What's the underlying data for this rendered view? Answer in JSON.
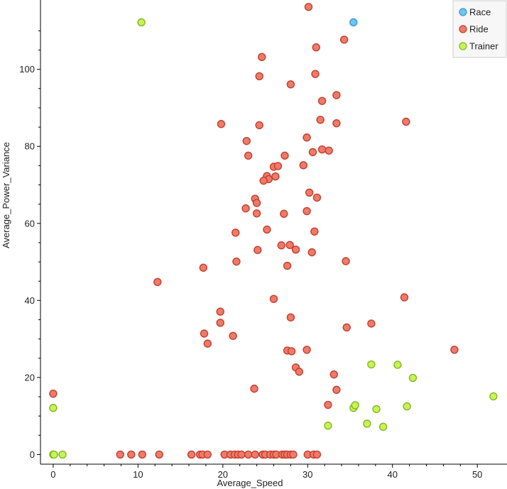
{
  "chart_data": {
    "type": "scatter",
    "title": "",
    "xlabel": "Average_Speed",
    "ylabel": "Average_Power_Variance",
    "xlim": [
      -1.5,
      53.5
    ],
    "ylim": [
      -2.5,
      118
    ],
    "xticks": [
      0,
      10,
      20,
      30,
      40,
      50
    ],
    "yticks": [
      0,
      20,
      40,
      60,
      80,
      100
    ],
    "legend_position": "top-right",
    "series": [
      {
        "name": "Race",
        "color": "#6ec6f0",
        "stroke": "#3d97c7",
        "points": [
          [
            35.4,
            112.2
          ]
        ]
      },
      {
        "name": "Ride",
        "color": "#f07a6a",
        "stroke": "#c2402e",
        "points": [
          [
            30.1,
            116.2
          ],
          [
            24.6,
            103.2
          ],
          [
            31.0,
            105.7
          ],
          [
            34.3,
            107.7
          ],
          [
            24.3,
            98.2
          ],
          [
            30.9,
            98.8
          ],
          [
            28.0,
            96.1
          ],
          [
            33.4,
            93.3
          ],
          [
            31.7,
            91.8
          ],
          [
            19.8,
            85.8
          ],
          [
            24.3,
            85.5
          ],
          [
            31.5,
            86.9
          ],
          [
            33.4,
            86.0
          ],
          [
            41.6,
            86.4
          ],
          [
            29.9,
            82.3
          ],
          [
            22.8,
            81.4
          ],
          [
            30.6,
            78.5
          ],
          [
            31.7,
            79.2
          ],
          [
            32.5,
            78.9
          ],
          [
            23.0,
            77.6
          ],
          [
            27.3,
            77.6
          ],
          [
            29.5,
            75.1
          ],
          [
            26.0,
            74.7
          ],
          [
            26.5,
            74.9
          ],
          [
            25.2,
            72.3
          ],
          [
            25.4,
            71.5
          ],
          [
            26.2,
            72.2
          ],
          [
            24.8,
            71.1
          ],
          [
            23.8,
            66.4
          ],
          [
            24.0,
            65.3
          ],
          [
            30.2,
            68.0
          ],
          [
            31.1,
            66.7
          ],
          [
            22.7,
            63.9
          ],
          [
            24.0,
            62.6
          ],
          [
            27.2,
            62.5
          ],
          [
            29.9,
            63.2
          ],
          [
            25.2,
            58.4
          ],
          [
            21.5,
            57.6
          ],
          [
            30.8,
            57.9
          ],
          [
            24.1,
            53.1
          ],
          [
            26.9,
            54.3
          ],
          [
            27.9,
            54.4
          ],
          [
            28.6,
            53.2
          ],
          [
            30.5,
            52.5
          ],
          [
            21.6,
            50.1
          ],
          [
            17.7,
            48.5
          ],
          [
            27.6,
            49.0
          ],
          [
            34.5,
            50.2
          ],
          [
            12.3,
            44.8
          ],
          [
            26.0,
            40.4
          ],
          [
            41.4,
            40.8
          ],
          [
            19.7,
            37.1
          ],
          [
            28.0,
            35.6
          ],
          [
            19.7,
            34.2
          ],
          [
            37.5,
            34.0
          ],
          [
            34.6,
            33.0
          ],
          [
            17.8,
            31.4
          ],
          [
            21.2,
            30.8
          ],
          [
            18.2,
            28.8
          ],
          [
            27.6,
            27.0
          ],
          [
            28.1,
            26.8
          ],
          [
            29.9,
            27.2
          ],
          [
            47.3,
            27.2
          ],
          [
            28.6,
            22.6
          ],
          [
            29.0,
            21.5
          ],
          [
            33.1,
            20.8
          ],
          [
            23.7,
            17.1
          ],
          [
            33.4,
            16.8
          ],
          [
            0.0,
            15.8
          ],
          [
            32.4,
            12.9
          ],
          [
            7.9,
            0
          ],
          [
            9.2,
            0
          ],
          [
            10.5,
            0
          ],
          [
            12.5,
            0
          ],
          [
            16.3,
            0
          ],
          [
            17.3,
            0
          ],
          [
            17.6,
            0
          ],
          [
            18.2,
            0
          ],
          [
            20.2,
            0
          ],
          [
            20.9,
            0
          ],
          [
            21.4,
            0
          ],
          [
            21.8,
            0
          ],
          [
            22.2,
            0
          ],
          [
            23.0,
            0
          ],
          [
            23.8,
            0
          ],
          [
            24.7,
            0
          ],
          [
            25.0,
            0
          ],
          [
            25.6,
            0
          ],
          [
            26.0,
            0
          ],
          [
            26.3,
            0
          ],
          [
            27.0,
            0
          ],
          [
            27.3,
            0
          ],
          [
            27.6,
            0
          ],
          [
            28.0,
            0
          ],
          [
            28.3,
            0
          ],
          [
            30.0,
            0
          ],
          [
            30.7,
            0
          ],
          [
            31.1,
            0
          ]
        ]
      },
      {
        "name": "Trainer",
        "color": "#c6f25a",
        "stroke": "#86b71d",
        "points": [
          [
            10.4,
            112.2
          ],
          [
            0.0,
            12.1
          ],
          [
            0.0,
            0
          ],
          [
            0.1,
            0
          ],
          [
            1.1,
            0
          ],
          [
            32.4,
            7.5
          ],
          [
            35.4,
            12.1
          ],
          [
            35.6,
            12.8
          ],
          [
            37.5,
            23.4
          ],
          [
            37.0,
            8.0
          ],
          [
            38.1,
            11.8
          ],
          [
            38.9,
            7.2
          ],
          [
            40.6,
            23.3
          ],
          [
            41.7,
            12.5
          ],
          [
            42.4,
            19.9
          ],
          [
            51.9,
            15.1
          ]
        ]
      }
    ]
  }
}
